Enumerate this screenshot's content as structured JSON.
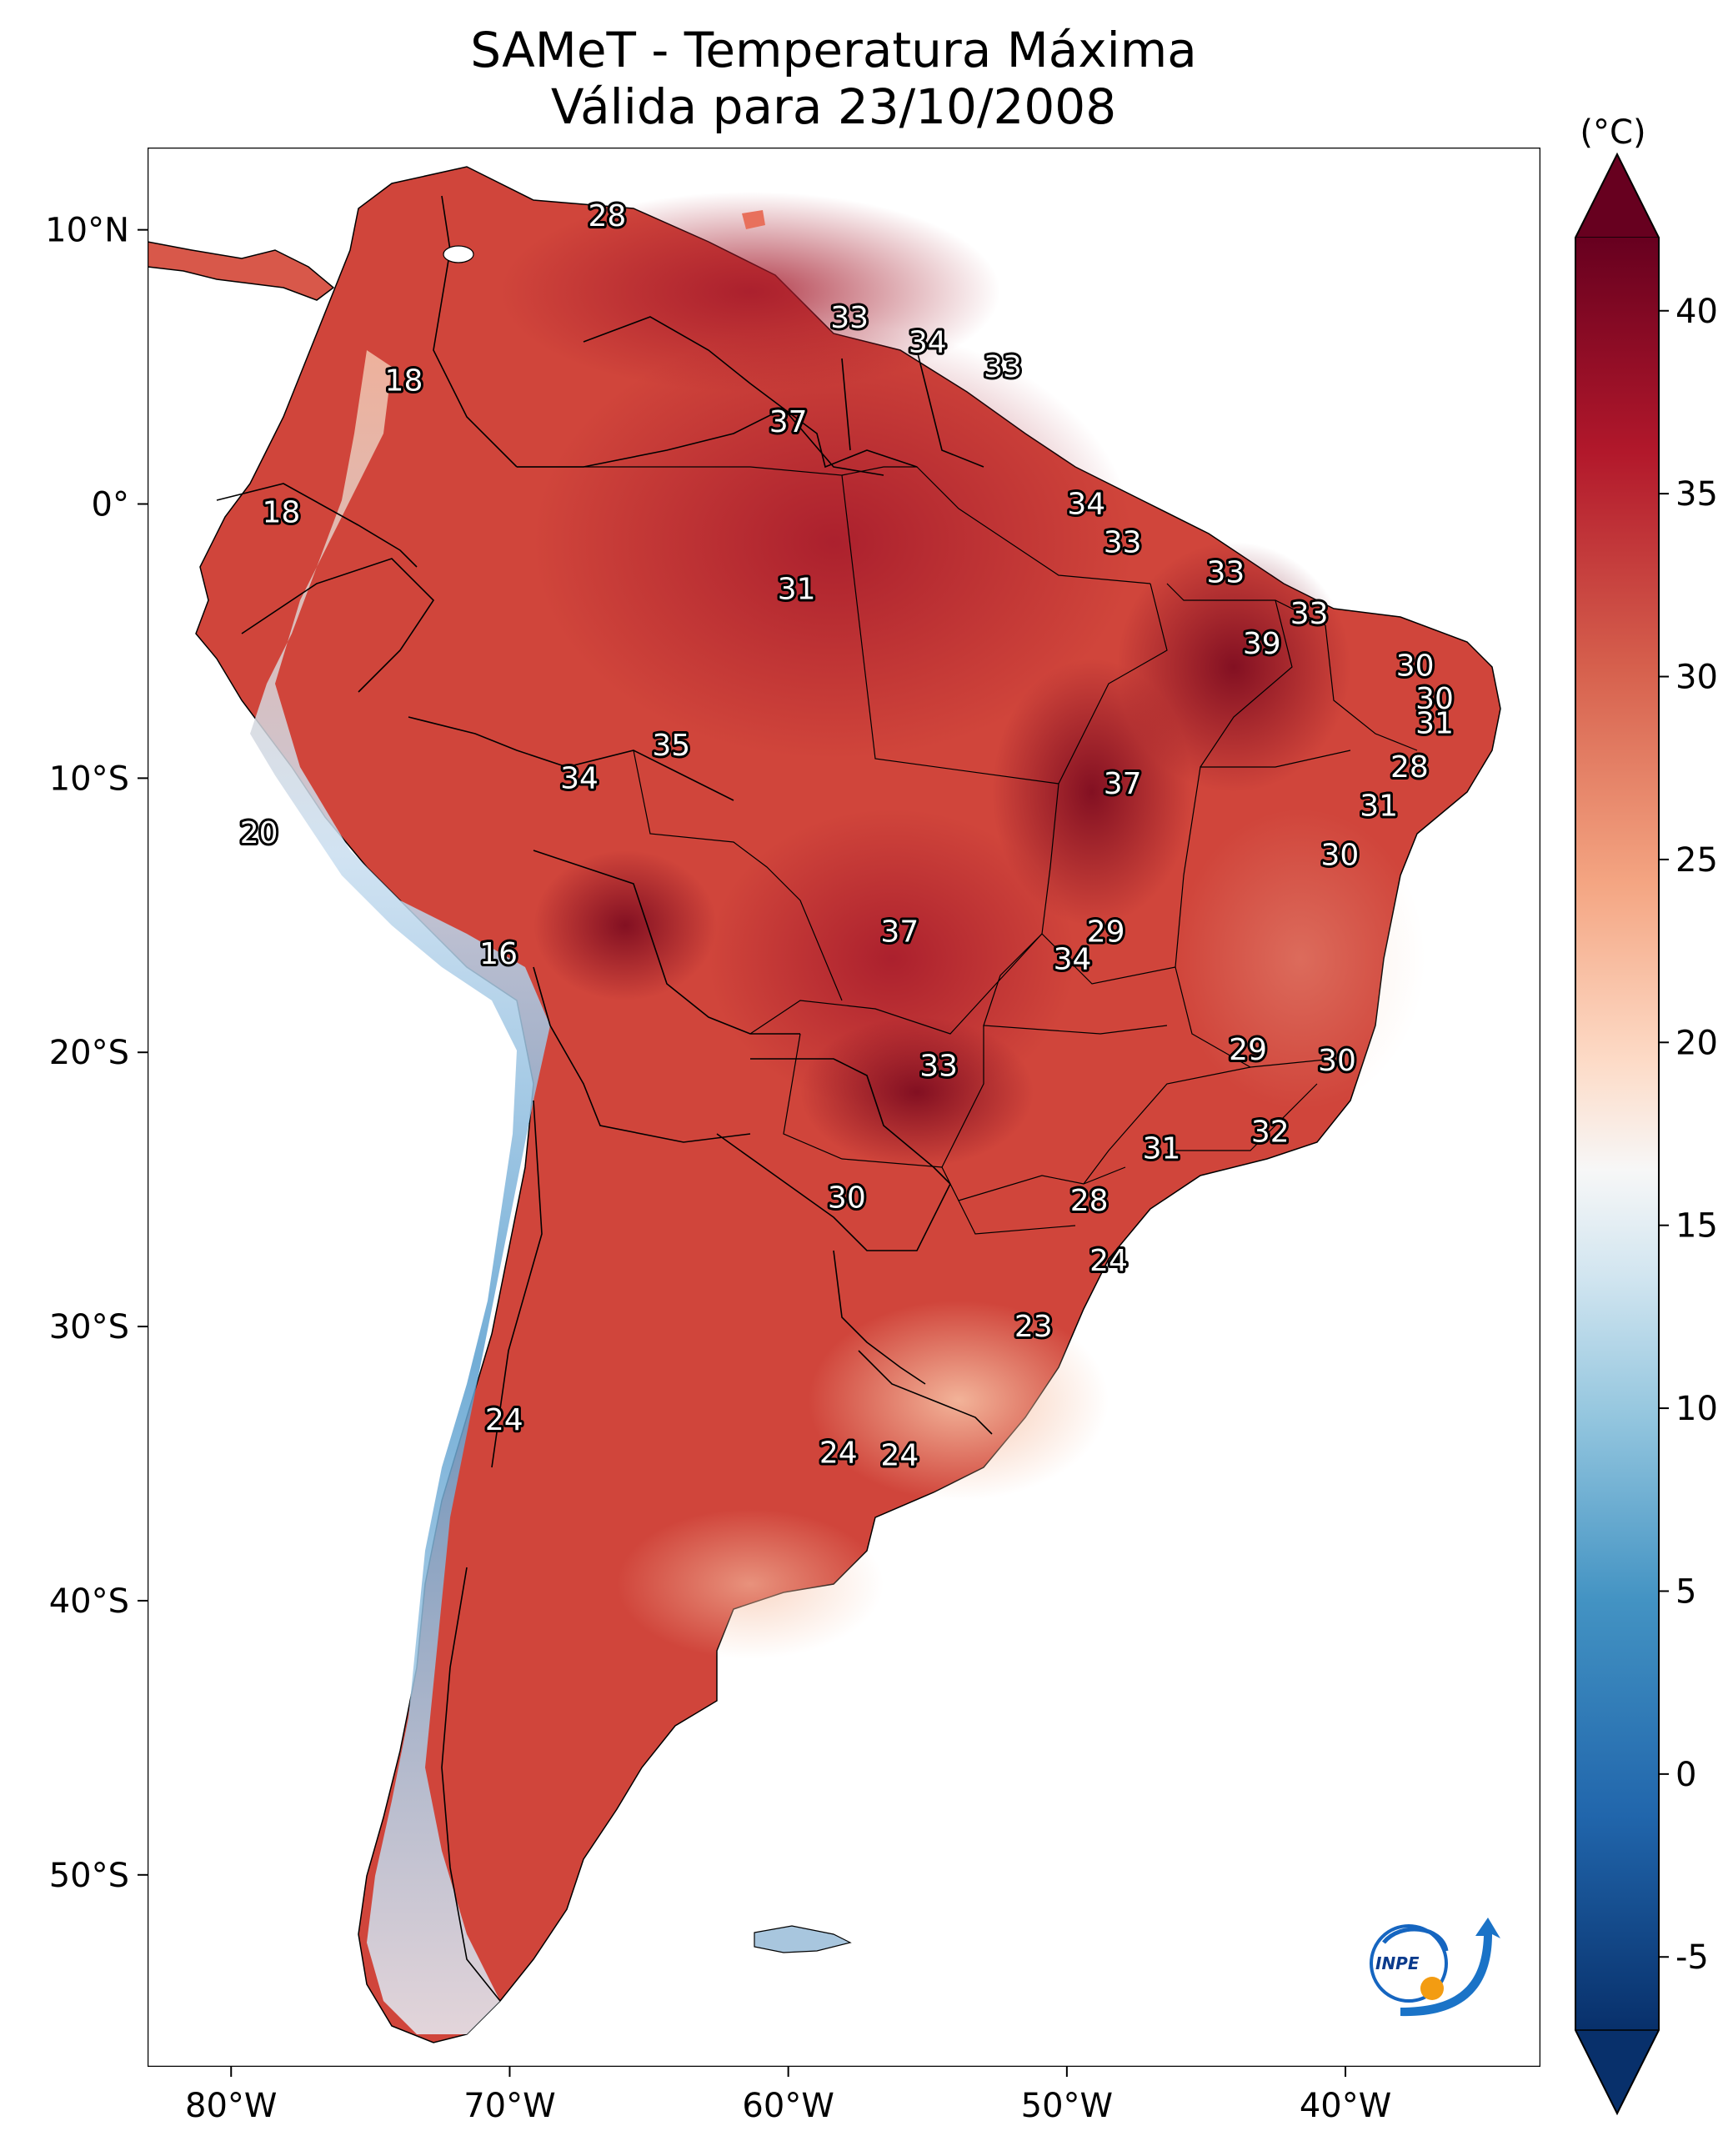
{
  "title": {
    "line1": "SAMeT - Temperatura Máxima",
    "line2": "Válida para 23/10/2008"
  },
  "map": {
    "lon_range": [
      -83,
      -33
    ],
    "lat_range": [
      -57,
      13
    ],
    "lon_ticks": [
      {
        "value": -80,
        "label": "80°W"
      },
      {
        "value": -70,
        "label": "70°W"
      },
      {
        "value": -60,
        "label": "60°W"
      },
      {
        "value": -50,
        "label": "50°W"
      },
      {
        "value": -40,
        "label": "40°W"
      }
    ],
    "lat_ticks": [
      {
        "value": 10,
        "label": "10°N"
      },
      {
        "value": 0,
        "label": "0°"
      },
      {
        "value": -10,
        "label": "10°S"
      },
      {
        "value": -20,
        "label": "20°S"
      },
      {
        "value": -30,
        "label": "30°S"
      },
      {
        "value": -40,
        "label": "40°S"
      },
      {
        "value": -50,
        "label": "50°S"
      }
    ],
    "station_values": [
      {
        "lon": -66.5,
        "lat": 10.5,
        "value": "28"
      },
      {
        "lon": -73.8,
        "lat": 4.5,
        "value": "18"
      },
      {
        "lon": -78.2,
        "lat": -0.3,
        "value": "18"
      },
      {
        "lon": -79.0,
        "lat": -12.0,
        "value": "20"
      },
      {
        "lon": -70.4,
        "lat": -16.4,
        "value": "16"
      },
      {
        "lon": -70.2,
        "lat": -33.4,
        "value": "24"
      },
      {
        "lon": -57.8,
        "lat": 6.8,
        "value": "33"
      },
      {
        "lon": -55.0,
        "lat": 5.9,
        "value": "34"
      },
      {
        "lon": -52.3,
        "lat": 5.0,
        "value": "33"
      },
      {
        "lon": -60.0,
        "lat": 3.0,
        "value": "37"
      },
      {
        "lon": -49.3,
        "lat": 0.0,
        "value": "34"
      },
      {
        "lon": -48.0,
        "lat": -1.4,
        "value": "33"
      },
      {
        "lon": -44.3,
        "lat": -2.5,
        "value": "33"
      },
      {
        "lon": -41.3,
        "lat": -4.0,
        "value": "33"
      },
      {
        "lon": -43.0,
        "lat": -5.1,
        "value": "39"
      },
      {
        "lon": -59.7,
        "lat": -3.1,
        "value": "31"
      },
      {
        "lon": -37.5,
        "lat": -5.9,
        "value": "30"
      },
      {
        "lon": -36.8,
        "lat": -7.1,
        "value": "30"
      },
      {
        "lon": -36.8,
        "lat": -8.0,
        "value": "31"
      },
      {
        "lon": -37.7,
        "lat": -9.6,
        "value": "28"
      },
      {
        "lon": -38.8,
        "lat": -11.0,
        "value": "31"
      },
      {
        "lon": -40.2,
        "lat": -12.8,
        "value": "30"
      },
      {
        "lon": -64.2,
        "lat": -8.8,
        "value": "35"
      },
      {
        "lon": -67.5,
        "lat": -10.0,
        "value": "34"
      },
      {
        "lon": -48.0,
        "lat": -10.2,
        "value": "37"
      },
      {
        "lon": -56.0,
        "lat": -15.6,
        "value": "37"
      },
      {
        "lon": -48.6,
        "lat": -15.6,
        "value": "29"
      },
      {
        "lon": -49.8,
        "lat": -16.6,
        "value": "34"
      },
      {
        "lon": -43.5,
        "lat": -19.9,
        "value": "29"
      },
      {
        "lon": -54.6,
        "lat": -20.5,
        "value": "33"
      },
      {
        "lon": -40.3,
        "lat": -20.3,
        "value": "30"
      },
      {
        "lon": -42.7,
        "lat": -22.9,
        "value": "32"
      },
      {
        "lon": -46.6,
        "lat": -23.5,
        "value": "31"
      },
      {
        "lon": -57.9,
        "lat": -25.3,
        "value": "30"
      },
      {
        "lon": -49.2,
        "lat": -25.4,
        "value": "28"
      },
      {
        "lon": -48.5,
        "lat": -27.6,
        "value": "24"
      },
      {
        "lon": -51.2,
        "lat": -30.0,
        "value": "23"
      },
      {
        "lon": -58.2,
        "lat": -34.6,
        "value": "24"
      },
      {
        "lon": -56.0,
        "lat": -34.7,
        "value": "24"
      }
    ]
  },
  "colorbar": {
    "unit": "(°C)",
    "min": -7,
    "max": 42,
    "tick_labels": [
      "40",
      "35",
      "30",
      "25",
      "20",
      "15",
      "10",
      "5",
      "0",
      "-5"
    ],
    "tick_values": [
      40,
      35,
      30,
      25,
      20,
      15,
      10,
      5,
      0,
      -5
    ],
    "colors": [
      "#08306b",
      "#2166ac",
      "#4393c3",
      "#92c5de",
      "#d1e5f0",
      "#f7f7f7",
      "#fddbc7",
      "#f4a582",
      "#d6604d",
      "#b2182b",
      "#67001f"
    ]
  },
  "logo": {
    "text": "INPE"
  }
}
